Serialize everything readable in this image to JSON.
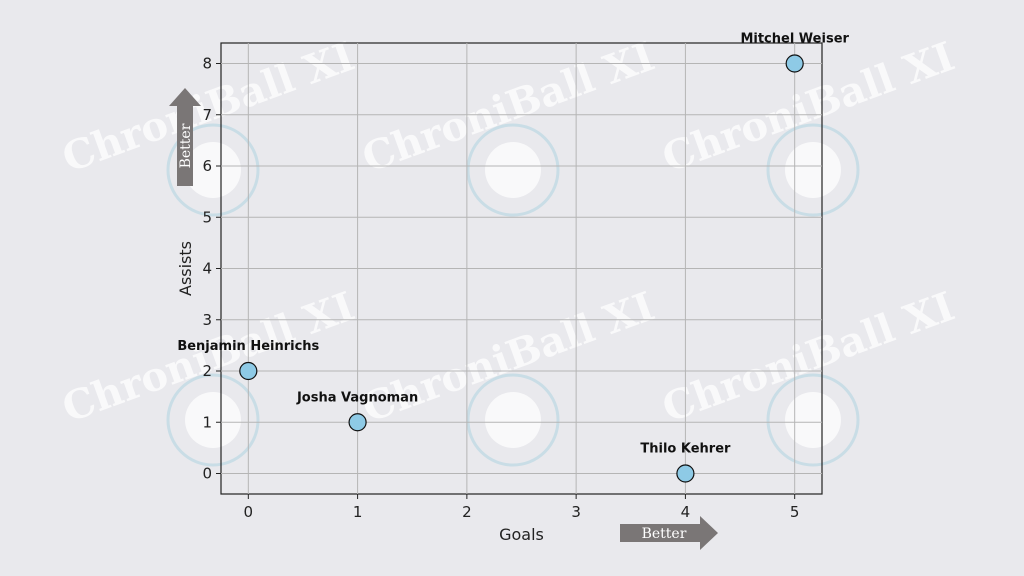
{
  "watermark": {
    "text": "ChroniBall XI"
  },
  "chart_data": {
    "type": "scatter",
    "xlabel": "Goals",
    "ylabel": "Assists",
    "xlim": [
      -0.25,
      5.25
    ],
    "ylim": [
      -0.4,
      8.4
    ],
    "xticks": [
      0,
      1,
      2,
      3,
      4,
      5
    ],
    "yticks": [
      0,
      1,
      2,
      3,
      4,
      5,
      6,
      7,
      8
    ],
    "grid": true,
    "marker_color": "#8ecae6",
    "points": [
      {
        "label": "Benjamin Heinrichs",
        "x": 0,
        "y": 2
      },
      {
        "label": "Josha Vagnoman",
        "x": 1,
        "y": 1
      },
      {
        "label": "Thilo Kehrer",
        "x": 4,
        "y": 0
      },
      {
        "label": "Mitchel Weiser",
        "x": 5,
        "y": 8
      }
    ],
    "annotations": {
      "x_arrow": "Better",
      "y_arrow": "Better"
    }
  }
}
